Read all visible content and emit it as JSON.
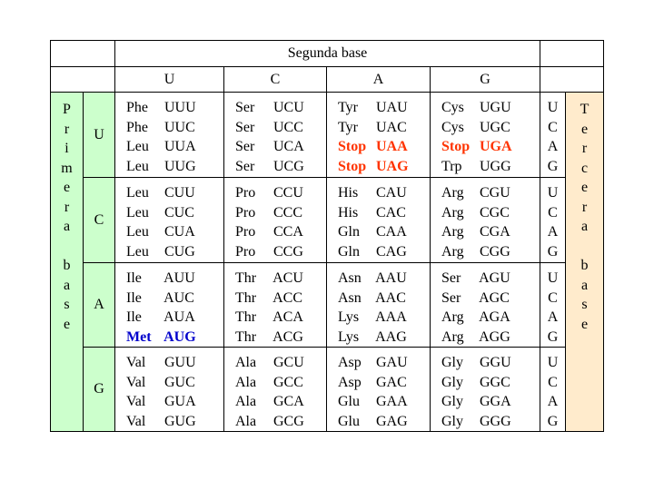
{
  "title": "Segunda base",
  "second_bases": [
    "U",
    "C",
    "A",
    "G"
  ],
  "first_base_label": [
    "P",
    "r",
    "i",
    "m",
    "e",
    "r",
    "a",
    "",
    "b",
    "a",
    "s",
    "e"
  ],
  "third_base_label": [
    "T",
    "e",
    "r",
    "c",
    "e",
    "r",
    "a",
    "",
    "b",
    "a",
    "s",
    "e"
  ],
  "colors": {
    "green": "#ccffcc",
    "peach": "#ffebcc",
    "stop": "#ff3300",
    "start": "#0000cc"
  },
  "rows": [
    {
      "first": "U",
      "third": [
        "U",
        "C",
        "A",
        "G"
      ],
      "cols": [
        [
          {
            "aa": "Phe",
            "codon": "UUU",
            "style": ""
          },
          {
            "aa": "Phe",
            "codon": "UUC",
            "style": ""
          },
          {
            "aa": "Leu",
            "codon": "UUA",
            "style": ""
          },
          {
            "aa": "Leu",
            "codon": "UUG",
            "style": ""
          }
        ],
        [
          {
            "aa": "Ser",
            "codon": "UCU",
            "style": ""
          },
          {
            "aa": "Ser",
            "codon": "UCC",
            "style": ""
          },
          {
            "aa": "Ser",
            "codon": "UCA",
            "style": ""
          },
          {
            "aa": "Ser",
            "codon": "UCG",
            "style": ""
          }
        ],
        [
          {
            "aa": "Tyr",
            "codon": "UAU",
            "style": ""
          },
          {
            "aa": "Tyr",
            "codon": "UAC",
            "style": ""
          },
          {
            "aa": "Stop",
            "codon": "UAA",
            "style": "stop"
          },
          {
            "aa": "Stop",
            "codon": "UAG",
            "style": "stop"
          }
        ],
        [
          {
            "aa": "Cys",
            "codon": "UGU",
            "style": ""
          },
          {
            "aa": "Cys",
            "codon": "UGC",
            "style": ""
          },
          {
            "aa": "Stop",
            "codon": "UGA",
            "style": "stop"
          },
          {
            "aa": "Trp",
            "codon": "UGG",
            "style": ""
          }
        ]
      ]
    },
    {
      "first": "C",
      "third": [
        "U",
        "C",
        "A",
        "G"
      ],
      "cols": [
        [
          {
            "aa": "Leu",
            "codon": "CUU",
            "style": ""
          },
          {
            "aa": "Leu",
            "codon": "CUC",
            "style": ""
          },
          {
            "aa": "Leu",
            "codon": "CUA",
            "style": ""
          },
          {
            "aa": "Leu",
            "codon": "CUG",
            "style": ""
          }
        ],
        [
          {
            "aa": "Pro",
            "codon": "CCU",
            "style": ""
          },
          {
            "aa": "Pro",
            "codon": "CCC",
            "style": ""
          },
          {
            "aa": "Pro",
            "codon": "CCA",
            "style": ""
          },
          {
            "aa": "Pro",
            "codon": "CCG",
            "style": ""
          }
        ],
        [
          {
            "aa": "His",
            "codon": "CAU",
            "style": ""
          },
          {
            "aa": "His",
            "codon": "CAC",
            "style": ""
          },
          {
            "aa": "Gln",
            "codon": "CAA",
            "style": ""
          },
          {
            "aa": "Gln",
            "codon": "CAG",
            "style": ""
          }
        ],
        [
          {
            "aa": "Arg",
            "codon": "CGU",
            "style": ""
          },
          {
            "aa": "Arg",
            "codon": "CGC",
            "style": ""
          },
          {
            "aa": "Arg",
            "codon": "CGA",
            "style": ""
          },
          {
            "aa": "Arg",
            "codon": "CGG",
            "style": ""
          }
        ]
      ]
    },
    {
      "first": "A",
      "third": [
        "U",
        "C",
        "A",
        "G"
      ],
      "cols": [
        [
          {
            "aa": "Ile",
            "codon": "AUU",
            "style": ""
          },
          {
            "aa": "Ile",
            "codon": "AUC",
            "style": ""
          },
          {
            "aa": "Ile",
            "codon": "AUA",
            "style": ""
          },
          {
            "aa": "Met",
            "codon": "AUG",
            "style": "met"
          }
        ],
        [
          {
            "aa": "Thr",
            "codon": "ACU",
            "style": ""
          },
          {
            "aa": "Thr",
            "codon": "ACC",
            "style": ""
          },
          {
            "aa": "Thr",
            "codon": "ACA",
            "style": ""
          },
          {
            "aa": "Thr",
            "codon": "ACG",
            "style": ""
          }
        ],
        [
          {
            "aa": "Asn",
            "codon": "AAU",
            "style": ""
          },
          {
            "aa": "Asn",
            "codon": "AAC",
            "style": ""
          },
          {
            "aa": "Lys",
            "codon": "AAA",
            "style": ""
          },
          {
            "aa": "Lys",
            "codon": "AAG",
            "style": ""
          }
        ],
        [
          {
            "aa": "Ser",
            "codon": "AGU",
            "style": ""
          },
          {
            "aa": "Ser",
            "codon": "AGC",
            "style": ""
          },
          {
            "aa": "Arg",
            "codon": "AGA",
            "style": ""
          },
          {
            "aa": "Arg",
            "codon": "AGG",
            "style": ""
          }
        ]
      ]
    },
    {
      "first": "G",
      "third": [
        "U",
        "C",
        "A",
        "G"
      ],
      "cols": [
        [
          {
            "aa": "Val",
            "codon": "GUU",
            "style": ""
          },
          {
            "aa": "Val",
            "codon": "GUC",
            "style": ""
          },
          {
            "aa": "Val",
            "codon": "GUA",
            "style": ""
          },
          {
            "aa": "Val",
            "codon": "GUG",
            "style": ""
          }
        ],
        [
          {
            "aa": "Ala",
            "codon": "GCU",
            "style": ""
          },
          {
            "aa": "Ala",
            "codon": "GCC",
            "style": ""
          },
          {
            "aa": "Ala",
            "codon": "GCA",
            "style": ""
          },
          {
            "aa": "Ala",
            "codon": "GCG",
            "style": ""
          }
        ],
        [
          {
            "aa": "Asp",
            "codon": "GAU",
            "style": ""
          },
          {
            "aa": "Asp",
            "codon": "GAC",
            "style": ""
          },
          {
            "aa": "Glu",
            "codon": "GAA",
            "style": ""
          },
          {
            "aa": "Glu",
            "codon": "GAG",
            "style": ""
          }
        ],
        [
          {
            "aa": "Gly",
            "codon": "GGU",
            "style": ""
          },
          {
            "aa": "Gly",
            "codon": "GGC",
            "style": ""
          },
          {
            "aa": "Gly",
            "codon": "GGA",
            "style": ""
          },
          {
            "aa": "Gly",
            "codon": "GGG",
            "style": ""
          }
        ]
      ]
    }
  ]
}
